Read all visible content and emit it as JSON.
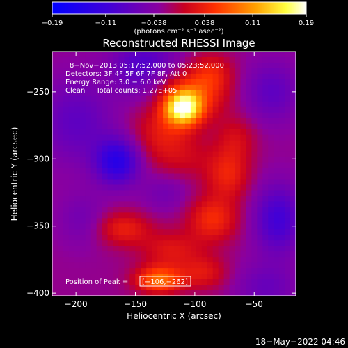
{
  "chart_data": {
    "type": "heatmap",
    "title": "Reconstructed RHESSI Image",
    "xlabel": "Heliocentric X (arcsec)",
    "ylabel": "Heliocentric Y (arcsec)",
    "xlim": [
      -220,
      -15
    ],
    "ylim": [
      -402,
      -220
    ],
    "xticks": [
      -200,
      -150,
      -100,
      -50
    ],
    "xtick_labels": [
      "−200",
      "−150",
      "−100",
      "−50"
    ],
    "yticks": [
      -250,
      -300,
      -350,
      -400
    ],
    "ytick_labels": [
      "−250",
      "−300",
      "−350",
      "−400"
    ],
    "colorbar": {
      "min": -0.19,
      "max": 0.19,
      "ticks": [
        -0.19,
        -0.11,
        -0.038,
        0.038,
        0.11,
        0.19
      ],
      "tick_labels": [
        "−0.19",
        "−0.11",
        "−0.038",
        "0.038",
        "0.11",
        "0.19"
      ],
      "units_label": "(photons cm⁻² s⁻¹ asec⁻²)",
      "colormap": "blue-purple-red-orange-yellow-white"
    },
    "annotations": [
      "8−Nov−2013 05:17:52.000 to 05:23:52.000",
      "Detectors: 3F 4F 5F 6F 7F 8F, Att 0",
      "Energy Range: 3.0 − 6.0 keV",
      "Clean     Total counts: 1.27E+05"
    ],
    "peak": {
      "label": "Position of Peak = ",
      "value": "[−106,−262]",
      "x": -106,
      "y": -262
    },
    "sources": [
      {
        "x": -110,
        "y": -262,
        "amplitude": 0.19,
        "sigma_x": 11,
        "sigma_y": 9
      },
      {
        "x": -97,
        "y": -250,
        "amplitude": 0.07,
        "sigma_x": 18,
        "sigma_y": 14
      },
      {
        "x": -128,
        "y": -280,
        "amplitude": 0.05,
        "sigma_x": 18,
        "sigma_y": 14
      },
      {
        "x": -85,
        "y": -235,
        "amplitude": 0.04,
        "sigma_x": 12,
        "sigma_y": 10
      },
      {
        "x": -130,
        "y": -390,
        "amplitude": 0.11,
        "sigma_x": 14,
        "sigma_y": 7
      },
      {
        "x": -160,
        "y": -352,
        "amplitude": 0.06,
        "sigma_x": 16,
        "sigma_y": 9
      },
      {
        "x": -120,
        "y": -368,
        "amplitude": 0.05,
        "sigma_x": 18,
        "sigma_y": 10
      },
      {
        "x": -85,
        "y": -345,
        "amplitude": 0.07,
        "sigma_x": 15,
        "sigma_y": 12
      },
      {
        "x": -72,
        "y": -312,
        "amplitude": 0.06,
        "sigma_x": 13,
        "sigma_y": 13
      },
      {
        "x": -65,
        "y": -285,
        "amplitude": 0.04,
        "sigma_x": 12,
        "sigma_y": 12
      },
      {
        "x": -110,
        "y": -300,
        "amplitude": 0.03,
        "sigma_x": 20,
        "sigma_y": 12
      },
      {
        "x": -92,
        "y": -385,
        "amplitude": 0.05,
        "sigma_x": 14,
        "sigma_y": 9
      },
      {
        "x": -165,
        "y": -302,
        "amplitude": -0.11,
        "sigma_x": 13,
        "sigma_y": 12
      },
      {
        "x": -200,
        "y": -272,
        "amplitude": -0.05,
        "sigma_x": 22,
        "sigma_y": 22
      },
      {
        "x": -30,
        "y": -345,
        "amplitude": -0.08,
        "sigma_x": 14,
        "sigma_y": 18
      },
      {
        "x": -35,
        "y": -250,
        "amplitude": -0.05,
        "sigma_x": 16,
        "sigma_y": 16
      },
      {
        "x": -150,
        "y": -240,
        "amplitude": -0.03,
        "sigma_x": 14,
        "sigma_y": 12
      },
      {
        "x": -195,
        "y": -345,
        "amplitude": -0.03,
        "sigma_x": 14,
        "sigma_y": 14
      },
      {
        "x": -40,
        "y": -395,
        "amplitude": -0.04,
        "sigma_x": 18,
        "sigma_y": 12
      },
      {
        "x": -125,
        "y": -325,
        "amplitude": -0.03,
        "sigma_x": 14,
        "sigma_y": 10
      },
      {
        "x": -140,
        "y": -225,
        "amplitude": -0.05,
        "sigma_x": 20,
        "sigma_y": 10
      }
    ]
  },
  "footer": {
    "date_stamp": "18−May−2022 04:46"
  }
}
